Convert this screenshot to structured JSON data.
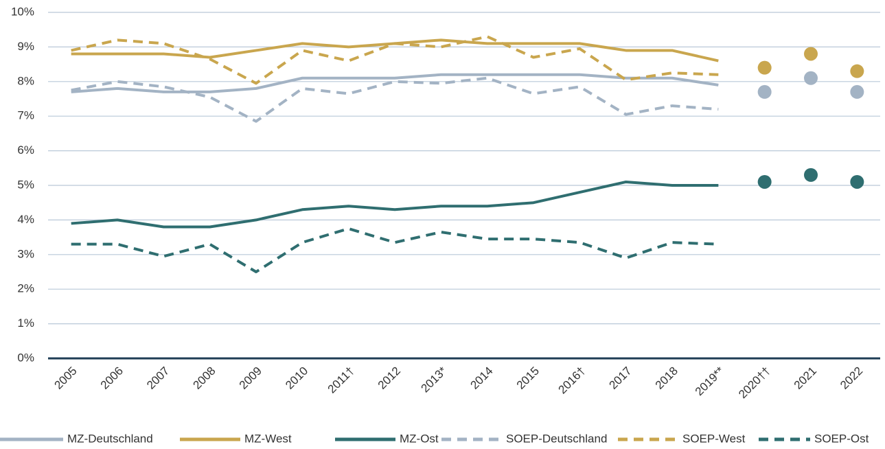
{
  "chart_data": {
    "type": "line",
    "categories": [
      "2005",
      "2006",
      "2007",
      "2008",
      "2009",
      "2010",
      "2011†",
      "2012",
      "2013*",
      "2014",
      "2015",
      "2016†",
      "2017",
      "2018",
      "2019**",
      "2020††",
      "2021",
      "2022"
    ],
    "ylim": [
      0,
      10
    ],
    "yticks": [
      {
        "value": 0,
        "label": "0%"
      },
      {
        "value": 1,
        "label": "1%"
      },
      {
        "value": 2,
        "label": "2%"
      },
      {
        "value": 3,
        "label": "3%"
      },
      {
        "value": 4,
        "label": "4%"
      },
      {
        "value": 5,
        "label": "5%"
      },
      {
        "value": 6,
        "label": "6%"
      },
      {
        "value": 7,
        "label": "7%"
      },
      {
        "value": 8,
        "label": "8%"
      },
      {
        "value": 9,
        "label": "9%"
      },
      {
        "value": 10,
        "label": "10%"
      }
    ],
    "grid": true,
    "legend": "bottom",
    "series": [
      {
        "name": "MZ-Deutschland",
        "color": "#a3b3c4",
        "dashed": false,
        "values": [
          7.7,
          7.8,
          7.7,
          7.7,
          7.8,
          8.1,
          8.1,
          8.1,
          8.2,
          8.2,
          8.2,
          8.2,
          8.1,
          8.1,
          7.9,
          null,
          null,
          null
        ],
        "point_values": [
          null,
          null,
          null,
          null,
          null,
          null,
          null,
          null,
          null,
          null,
          null,
          null,
          null,
          null,
          null,
          7.7,
          8.1,
          7.7
        ]
      },
      {
        "name": "MZ-West",
        "color": "#c9a64e",
        "dashed": false,
        "values": [
          8.8,
          8.8,
          8.8,
          8.7,
          8.9,
          9.1,
          9.0,
          9.1,
          9.2,
          9.1,
          9.1,
          9.1,
          8.9,
          8.9,
          8.6,
          null,
          null,
          null
        ],
        "point_values": [
          null,
          null,
          null,
          null,
          null,
          null,
          null,
          null,
          null,
          null,
          null,
          null,
          null,
          null,
          null,
          8.4,
          8.8,
          8.3
        ]
      },
      {
        "name": "MZ-Ost",
        "color": "#2f6e70",
        "dashed": false,
        "values": [
          3.9,
          4.0,
          3.8,
          3.8,
          4.0,
          4.3,
          4.4,
          4.3,
          4.4,
          4.4,
          4.5,
          4.8,
          5.1,
          5.0,
          5.0,
          null,
          null,
          null
        ],
        "point_values": [
          null,
          null,
          null,
          null,
          null,
          null,
          null,
          null,
          null,
          null,
          null,
          null,
          null,
          null,
          null,
          5.1,
          5.3,
          5.1
        ]
      },
      {
        "name": "SOEP-Deutschland",
        "color": "#a3b3c4",
        "dashed": true,
        "values": [
          7.75,
          8.0,
          7.85,
          7.55,
          6.85,
          7.8,
          7.65,
          8.0,
          7.95,
          8.1,
          7.65,
          7.85,
          7.05,
          7.3,
          7.2,
          null,
          null,
          null
        ]
      },
      {
        "name": "SOEP-West",
        "color": "#c9a64e",
        "dashed": true,
        "values": [
          8.9,
          9.2,
          9.1,
          8.65,
          7.95,
          8.9,
          8.6,
          9.1,
          9.0,
          9.3,
          8.7,
          8.95,
          8.05,
          8.25,
          8.2,
          null,
          null,
          null
        ]
      },
      {
        "name": "SOEP-Ost",
        "color": "#2f6e70",
        "dashed": true,
        "values": [
          3.3,
          3.3,
          2.95,
          3.3,
          2.5,
          3.35,
          3.75,
          3.35,
          3.65,
          3.45,
          3.45,
          3.35,
          2.9,
          3.35,
          3.3,
          null,
          null,
          null
        ]
      }
    ]
  }
}
